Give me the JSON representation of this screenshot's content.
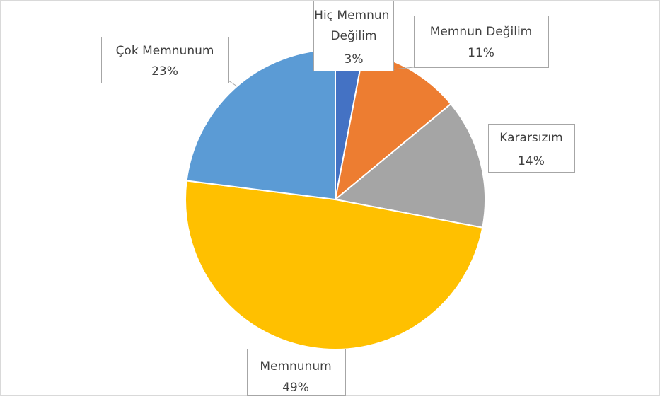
{
  "chart_data": {
    "type": "pie",
    "categories": [
      "Hiç Memnun Değilim",
      "Memnun Değilim",
      "Kararsızım",
      "Memnunum",
      "Çok Memnunum"
    ],
    "values": [
      3,
      11,
      14,
      49,
      23
    ],
    "value_labels": [
      "3%",
      "11%",
      "14%",
      "49%",
      "23%"
    ],
    "colors": [
      "#4472c4",
      "#ed7d31",
      "#a5a5a5",
      "#ffc000",
      "#5b9bd5"
    ]
  }
}
